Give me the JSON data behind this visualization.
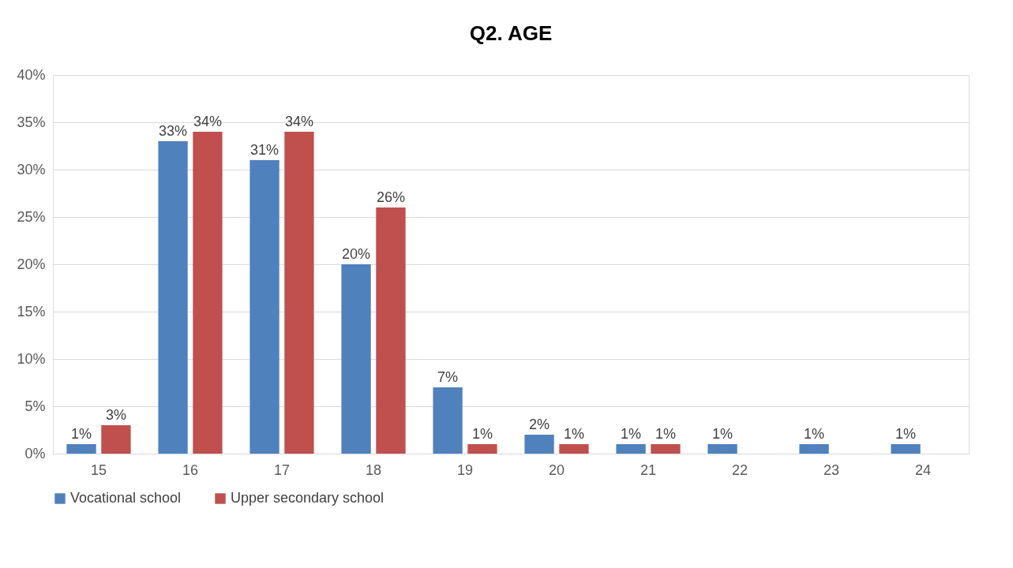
{
  "chart_data": {
    "type": "bar",
    "title": "Q2. AGE",
    "categories": [
      "15",
      "16",
      "17",
      "18",
      "19",
      "20",
      "21",
      "22",
      "23",
      "24"
    ],
    "series": [
      {
        "name": "Vocational school",
        "color": "#4f81bd",
        "values": [
          1,
          33,
          31,
          20,
          7,
          2,
          1,
          1,
          1,
          1
        ],
        "value_labels": [
          "1%",
          "33%",
          "31%",
          "20%",
          "7%",
          "2%",
          "1%",
          "1%",
          "1%",
          "1%"
        ]
      },
      {
        "name": "Upper secondary school",
        "color": "#c0504d",
        "values": [
          3,
          34,
          34,
          26,
          1,
          1,
          1,
          null,
          null,
          null
        ],
        "value_labels": [
          "3%",
          "34%",
          "34%",
          "26%",
          "1%",
          "1%",
          "1%",
          null,
          null,
          null
        ]
      }
    ],
    "ylim": [
      0,
      40
    ],
    "yticks": [
      {
        "value": 0,
        "label": "0%"
      },
      {
        "value": 5,
        "label": "5%"
      },
      {
        "value": 10,
        "label": "10%"
      },
      {
        "value": 15,
        "label": "15%"
      },
      {
        "value": 20,
        "label": "20%"
      },
      {
        "value": 25,
        "label": "25%"
      },
      {
        "value": 30,
        "label": "30%"
      },
      {
        "value": 35,
        "label": "35%"
      },
      {
        "value": 40,
        "label": "40%"
      }
    ],
    "grid": "y",
    "legend": "bottom"
  }
}
